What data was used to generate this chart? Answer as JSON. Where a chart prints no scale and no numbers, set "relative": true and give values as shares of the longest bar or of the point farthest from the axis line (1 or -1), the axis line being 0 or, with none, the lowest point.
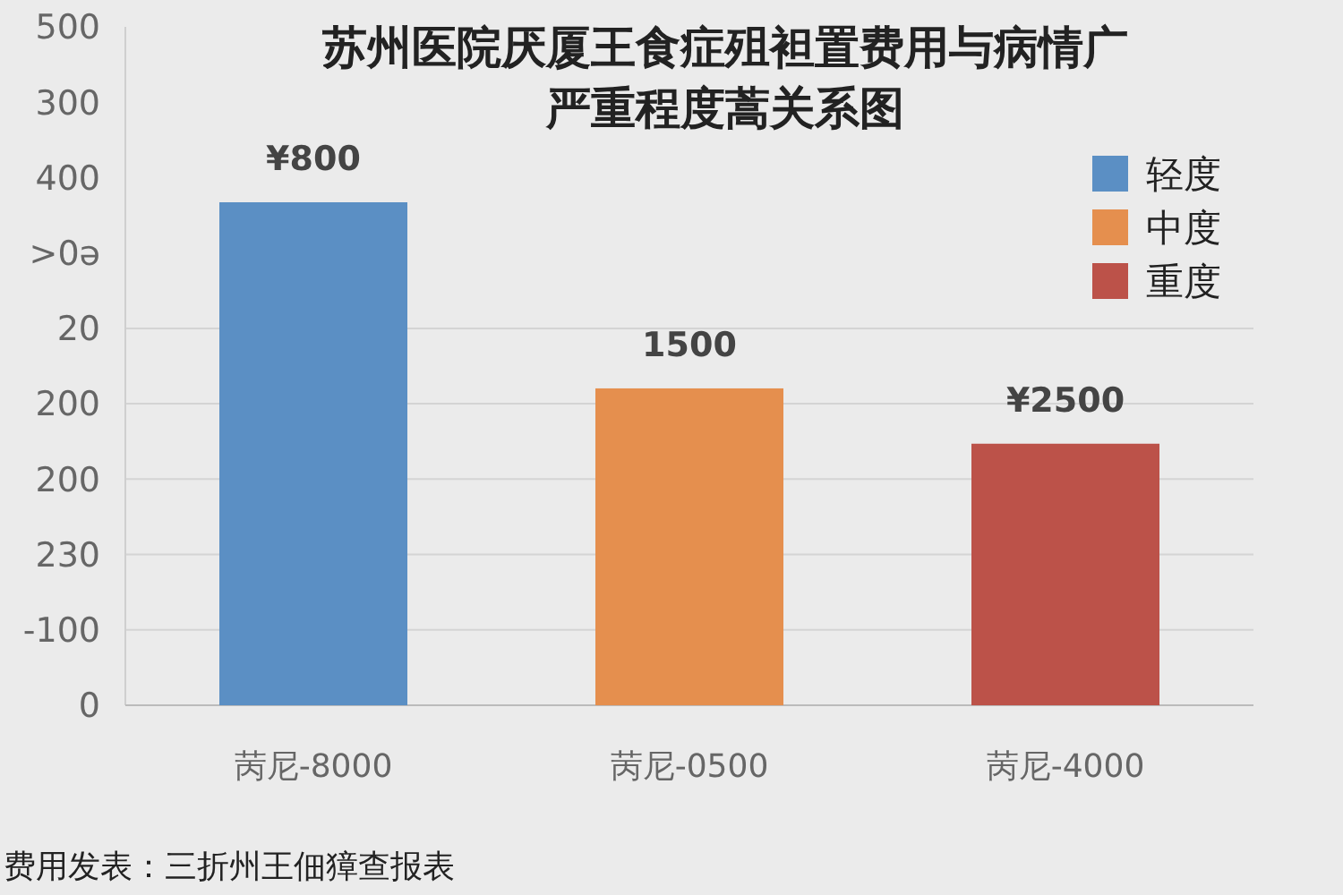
{
  "chart_data": {
    "type": "bar",
    "title": "苏州医院厌厦王食症殂袒置费用与病情广严重程度蒿关系图",
    "categories": [
      "苪尼-8000",
      "苪尼-0500",
      "苪尼-4000"
    ],
    "series": [
      {
        "name": "轻度",
        "color": "#5b8fc4",
        "values": [
          1,
          null,
          null
        ]
      },
      {
        "name": "中度",
        "color": "#e58f4e",
        "values": [
          null,
          0.63,
          null
        ]
      },
      {
        "name": "重度",
        "color": "#bc5249",
        "values": [
          null,
          null,
          0.52
        ]
      }
    ],
    "stacked": true,
    "relative": true,
    "value_labels": [
      "¥800",
      "1500",
      "¥2500"
    ],
    "grid": "y",
    "legend": "top right",
    "annotations": [
      "费用发表：三折州王佃獐查报表",
      "0",
      "-100",
      "230",
      "200",
      "200",
      "20",
      ">0ə",
      "400",
      "300",
      "500"
    ]
  }
}
